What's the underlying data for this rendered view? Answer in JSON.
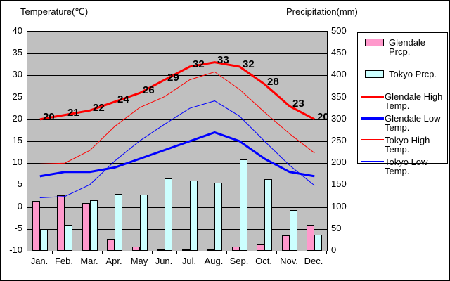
{
  "titles": {
    "left": "Temperature(℃)",
    "right": "Precipitation(mm)"
  },
  "legend": {
    "items": [
      {
        "label": "Glendale Prcp.",
        "type": "swatch",
        "color": "#ff99cc"
      },
      {
        "label": "Tokyo Prcp.",
        "type": "swatch",
        "color": "#ccffff"
      },
      {
        "label": "Glendale High Temp.",
        "type": "line-thick",
        "color": "#ff0000"
      },
      {
        "label": "Glendale Low Temp.",
        "type": "line-thick",
        "color": "#0000ff"
      },
      {
        "label": "Tokyo High Temp.",
        "type": "line-thin",
        "color": "#ff0000"
      },
      {
        "label": "Tokyo Low Temp.",
        "type": "line-thin",
        "color": "#0000ff"
      }
    ]
  },
  "chart_data": {
    "type": "combo",
    "categories": [
      "Jan.",
      "Feb.",
      "Mar.",
      "Apr.",
      "May",
      "Jun.",
      "Jul.",
      "Aug.",
      "Sep.",
      "Oct.",
      "Nov.",
      "Dec."
    ],
    "left_axis": {
      "title": "Temperature(℃)",
      "min": -10,
      "max": 40,
      "step": 5
    },
    "right_axis": {
      "title": "Precipitation(mm)",
      "min": 0,
      "max": 500,
      "step": 50
    },
    "bar_series": [
      {
        "name": "Glendale Prcp.",
        "axis": "right",
        "color": "#ff99cc",
        "values": [
          113,
          126,
          109,
          28,
          9,
          3,
          1,
          4,
          10,
          14,
          35,
          60
        ]
      },
      {
        "name": "Tokyo Prcp.",
        "axis": "right",
        "color": "#ccffff",
        "values": [
          49,
          60,
          115,
          130,
          128,
          165,
          161,
          155,
          209,
          163,
          93,
          37
        ]
      }
    ],
    "line_series": [
      {
        "name": "Tokyo Low Temp.",
        "axis": "left",
        "color": "#0000ff",
        "width": 1,
        "values": [
          2.1,
          2.4,
          5.1,
          10.5,
          15.1,
          18.9,
          22.5,
          24.2,
          20.7,
          15.0,
          9.5,
          4.9
        ]
      },
      {
        "name": "Tokyo High Temp.",
        "axis": "left",
        "color": "#ff0000",
        "width": 1,
        "values": [
          9.8,
          10.0,
          12.9,
          18.4,
          22.7,
          25.2,
          29.0,
          30.8,
          26.8,
          21.6,
          16.7,
          12.3
        ]
      },
      {
        "name": "Glendale Low Temp.",
        "axis": "left",
        "color": "#0000ff",
        "width": 3,
        "values": [
          7,
          8,
          8,
          9,
          11,
          13,
          15,
          17,
          15,
          11,
          8,
          7
        ]
      },
      {
        "name": "Glendale High Temp.",
        "axis": "left",
        "color": "#ff0000",
        "width": 3,
        "values": [
          20,
          21,
          22,
          24,
          26,
          29,
          32,
          33,
          32,
          28,
          23,
          20
        ],
        "data_labels": [
          "20",
          "21",
          "22",
          "24",
          "26",
          "29",
          "32",
          "33",
          "32",
          "28",
          "23",
          "20"
        ]
      }
    ],
    "plot_background": "#c0c0c0",
    "grid": "horizontal"
  }
}
